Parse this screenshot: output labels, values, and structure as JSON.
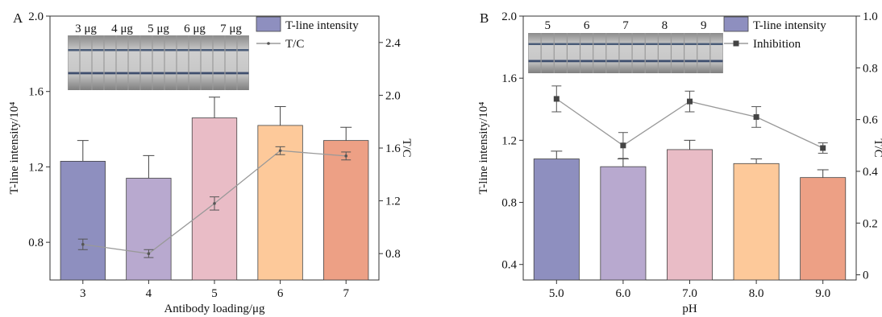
{
  "chart_data": [
    {
      "panel": "A",
      "type": "bar",
      "xlabel": "Antibody loading/μg",
      "ylabel": "T-line intensity/10⁴",
      "y2label": "T/C",
      "ylim": [
        0.6,
        2.0
      ],
      "y2lim": [
        0.6,
        2.6
      ],
      "yticks": [
        "0.8",
        "1.2",
        "1.6",
        "2.0"
      ],
      "y2ticks": [
        "0.8",
        "1.2",
        "1.6",
        "2.0",
        "2.4"
      ],
      "categories": [
        "3",
        "4",
        "5",
        "6",
        "7"
      ],
      "bar_colors": [
        "#8e8fbf",
        "#b8a9cf",
        "#e9bcc6",
        "#fdc99a",
        "#eda085"
      ],
      "series": [
        {
          "name": "T-line intensity",
          "kind": "bar",
          "values": [
            1.23,
            1.14,
            1.46,
            1.42,
            1.34
          ],
          "errors": [
            0.11,
            0.12,
            0.11,
            0.1,
            0.07
          ]
        },
        {
          "name": "T/C",
          "kind": "line",
          "axis": "right",
          "values": [
            0.87,
            0.8,
            1.18,
            1.58,
            1.54
          ],
          "errors": [
            0.04,
            0.03,
            0.05,
            0.03,
            0.03
          ]
        }
      ],
      "legend_position": "top-right",
      "strip_labels": [
        "3 μg",
        "4 μg",
        "5 μg",
        "6 μg",
        "7 μg"
      ]
    },
    {
      "panel": "B",
      "type": "bar",
      "xlabel": "pH",
      "ylabel": "T-line intensity/10⁴",
      "y2label": "T/C",
      "ylim": [
        0.3,
        2.0
      ],
      "y2lim": [
        -0.02,
        1.0
      ],
      "yticks": [
        "0.4",
        "0.8",
        "1.2",
        "1.6",
        "2.0"
      ],
      "y2ticks": [
        "0",
        "0.2",
        "0.4",
        "0.6",
        "0.8",
        "1.0"
      ],
      "categories": [
        "5.0",
        "6.0",
        "7.0",
        "8.0",
        "9.0"
      ],
      "bar_colors": [
        "#8e8fbf",
        "#b8a9cf",
        "#e9bcc6",
        "#fdc99a",
        "#eda085"
      ],
      "series": [
        {
          "name": "T-line intensity",
          "kind": "bar",
          "values": [
            1.08,
            1.03,
            1.14,
            1.05,
            0.96
          ],
          "errors": [
            0.05,
            0.05,
            0.06,
            0.03,
            0.05
          ]
        },
        {
          "name": "Inhibition",
          "kind": "line",
          "axis": "right",
          "values": [
            0.68,
            0.5,
            0.67,
            0.61,
            0.49
          ],
          "errors": [
            0.05,
            0.05,
            0.04,
            0.04,
            0.02
          ]
        }
      ],
      "legend_position": "top-right",
      "strip_labels": [
        "5",
        "6",
        "7",
        "8",
        "9"
      ]
    }
  ]
}
